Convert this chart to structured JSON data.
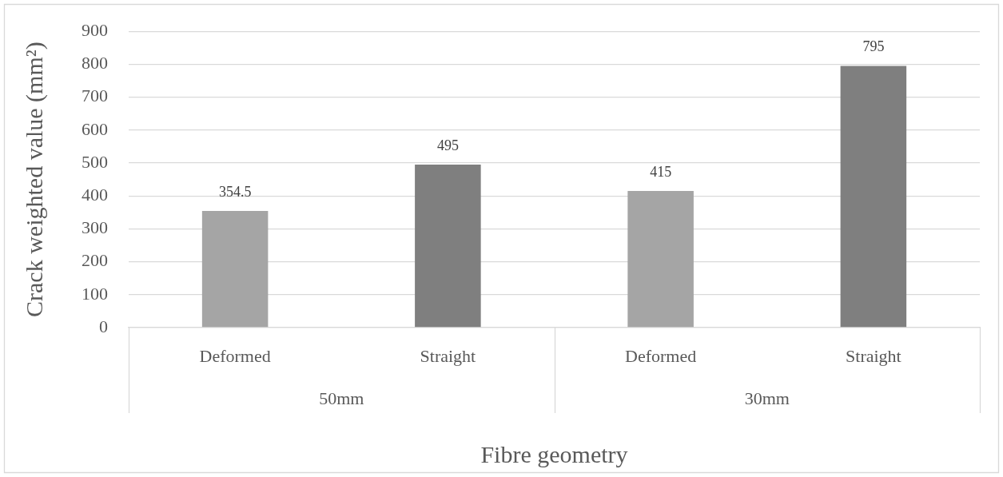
{
  "chart_data": {
    "type": "bar",
    "xlabel": "Fibre geometry",
    "ylabel": "Crack weighted value (mm²)",
    "categories": [
      "Deformed",
      "Straight",
      "Deformed",
      "Straight"
    ],
    "values": [
      354.5,
      495,
      415,
      795
    ],
    "colors": [
      "#a5a5a5",
      "#7f7f7f",
      "#a5a5a5",
      "#7f7f7f"
    ],
    "annotations": [
      "50mm",
      "30mm"
    ],
    "ylim": [
      0,
      900
    ],
    "yticks": [
      0,
      100,
      200,
      300,
      400,
      500,
      600,
      700,
      800,
      900
    ],
    "grid": "y",
    "data_labels": true
  }
}
